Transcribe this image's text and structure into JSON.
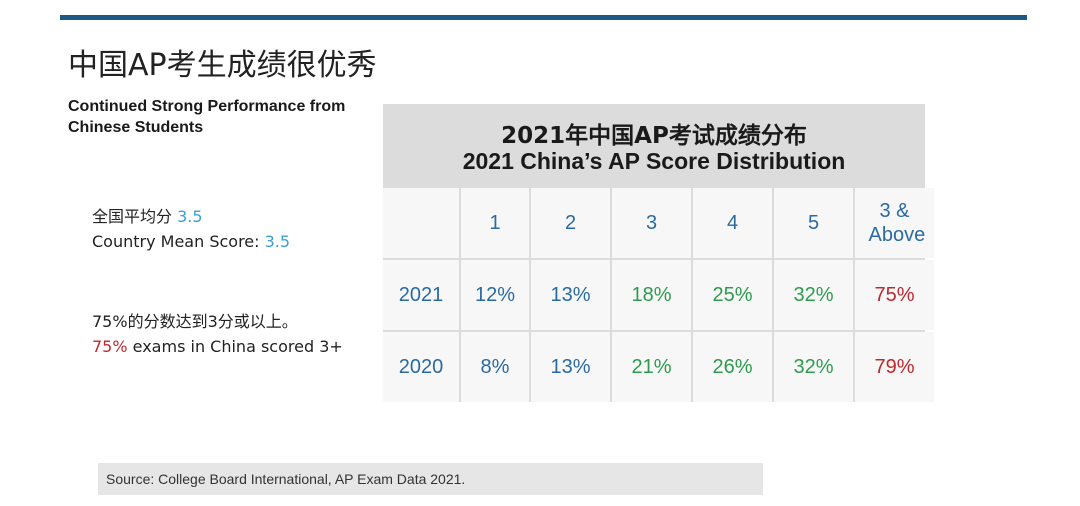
{
  "slide": {
    "title": "中国AP考生成绩很优秀",
    "subtitle": "Continued Strong Performance from Chinese Students",
    "stats": [
      {
        "prefix": "全国平均分 ",
        "value": "3.5",
        "suffix": "",
        "value_color": "#3b9fd1"
      },
      {
        "prefix": "Country Mean Score: ",
        "value": "3.5",
        "suffix": "",
        "value_color": "#3b9fd1"
      },
      {
        "prefix": "75%的分数达到3分或以上。",
        "value": "",
        "suffix": "",
        "value_color": "#c0282e"
      },
      {
        "prefix": "",
        "value": "75%",
        "suffix": " exams in China scored  3+",
        "value_color": "#c0282e"
      }
    ],
    "source": "Source: College Board International, AP Exam Data 2021."
  },
  "chart_data": {
    "type": "table",
    "title": "2021年中国AP考试成绩分布",
    "subtitle": "2021 China’s AP Score Distribution",
    "columns": [
      "1",
      "2",
      "3",
      "4",
      "5",
      "3 & Above"
    ],
    "rows": [
      {
        "label": "2021",
        "values": [
          "12%",
          "13%",
          "18%",
          "25%",
          "32%",
          "75%"
        ]
      },
      {
        "label": "2020",
        "values": [
          "8%",
          "13%",
          "21%",
          "26%",
          "32%",
          "79%"
        ]
      }
    ],
    "column_colors": [
      "#2a6aa1",
      "#2a6aa1",
      "#2e9b4e",
      "#2e9b4e",
      "#2e9b4e",
      "#c0282e"
    ],
    "header_color": "#2a6aa1"
  }
}
